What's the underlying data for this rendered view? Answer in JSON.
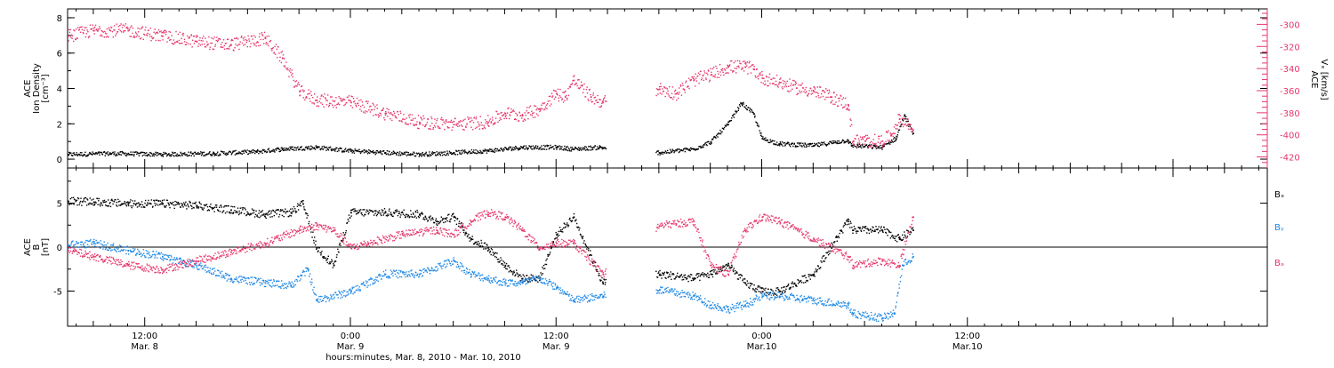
{
  "chart_data": {
    "type": "scatter",
    "x_unit": "hours since 2010-03-08 00:00 UT",
    "xlim": [
      7.5,
      77.5
    ],
    "time_axis": {
      "major_ticks": [
        {
          "x": 12,
          "time": "12:00",
          "date": "Mar. 8"
        },
        {
          "x": 24,
          "time": "0:00",
          "date": "Mar. 9"
        },
        {
          "x": 36,
          "time": "12:00",
          "date": "Mar. 9"
        },
        {
          "x": 48,
          "time": "0:00",
          "date": "Mar.10"
        },
        {
          "x": 60,
          "time": "12:00",
          "date": "Mar.10"
        }
      ],
      "xlabel": "hours:minutes, Mar.  8, 2010 - Mar. 10, 2010"
    },
    "panels": [
      {
        "id": "density",
        "left_ylabel": [
          "ACE",
          "Ion Density",
          "[cm⁻³]"
        ],
        "ylim": [
          -0.5,
          8.5
        ],
        "yticks": [
          0,
          2,
          4,
          6,
          8
        ],
        "right_ylabel": [
          "ACE",
          "Vₓ [km/s]"
        ],
        "right_ylim": [
          -430,
          -286
        ],
        "right_yticks": [
          -300,
          -320,
          -340,
          -360,
          -380,
          -400,
          -420
        ],
        "series": [
          {
            "name": "density",
            "color": "#000000",
            "axis": "left",
            "x": [
              7.5,
              10,
              13,
              16,
              18.5,
              20,
              22,
              24,
              26,
              28,
              30,
              32,
              34,
              36,
              37,
              38.5,
              42,
              44,
              45,
              46,
              46.8,
              47.5,
              48,
              49,
              51,
              53,
              53.2,
              55,
              55.8,
              56.3,
              56.8
            ],
            "y": [
              0.3,
              0.35,
              0.3,
              0.35,
              0.45,
              0.6,
              0.7,
              0.5,
              0.4,
              0.3,
              0.4,
              0.5,
              0.7,
              0.7,
              0.6,
              0.7,
              0.4,
              0.6,
              1.0,
              2.0,
              3.2,
              2.6,
              1.2,
              0.9,
              0.8,
              1.1,
              0.8,
              0.7,
              1.2,
              2.5,
              1.5
            ]
          },
          {
            "name": "Vx",
            "color": "#e5376b",
            "axis": "right",
            "x": [
              7.5,
              9,
              11,
              13,
              15,
              17,
              19,
              20,
              21,
              22,
              24,
              26,
              28,
              30,
              32,
              33,
              34,
              35,
              36,
              36.5,
              37,
              38,
              38.7,
              42,
              43,
              44,
              45,
              46,
              47,
              47.5,
              48,
              49,
              50,
              51,
              52,
              53,
              53.3,
              54,
              55,
              55.5,
              56,
              56.5,
              56.8
            ],
            "y": [
              -310,
              -305,
              -305,
              -310,
              -315,
              -318,
              -312,
              -330,
              -360,
              -368,
              -370,
              -380,
              -388,
              -390,
              -388,
              -380,
              -382,
              -376,
              -362,
              -365,
              -350,
              -365,
              -370,
              -358,
              -362,
              -350,
              -345,
              -338,
              -338,
              -340,
              -348,
              -352,
              -357,
              -360,
              -365,
              -372,
              -405,
              -405,
              -405,
              -400,
              -385,
              -390,
              -395
            ]
          }
        ]
      },
      {
        "id": "field",
        "left_ylabel": [
          "ACE",
          "B",
          "[nT]"
        ],
        "ylim": [
          -9,
          9
        ],
        "yticks": [
          5,
          0,
          -5
        ],
        "zero_line": true,
        "legend": [
          "Bₓ",
          "Bᵧ",
          "Bₔ"
        ],
        "series": [
          {
            "name": "Bx",
            "color": "#000000",
            "x": [
              7.5,
              9,
              11,
              13,
              15,
              17,
              19,
              20.5,
              21.2,
              22,
              23,
              24,
              26,
              28,
              29,
              30,
              31,
              32,
              33,
              34,
              35,
              36,
              37,
              38.7,
              42,
              44,
              45,
              46,
              47,
              48,
              49,
              51,
              53,
              53.3,
              55,
              56,
              56.8
            ],
            "y": [
              5.3,
              5.2,
              5.0,
              5.0,
              4.8,
              4.3,
              3.8,
              4.0,
              5.0,
              0.0,
              -2.0,
              4.0,
              4.0,
              3.8,
              3.0,
              3.5,
              1.0,
              0.0,
              -2.0,
              -3.5,
              -3.5,
              1.5,
              3.5,
              -4.0,
              -3.0,
              -3.5,
              -3.0,
              -2.0,
              -4.0,
              -5.0,
              -5.0,
              -3.0,
              3.0,
              2.0,
              2.0,
              1.0,
              2.0
            ]
          },
          {
            "name": "By",
            "color": "#1e88e5",
            "x": [
              7.5,
              9,
              11,
              13,
              15,
              17,
              19,
              20.5,
              21.5,
              22,
              24,
              26,
              28,
              30,
              31,
              32,
              33,
              34,
              35,
              36,
              37,
              38.7,
              42,
              44,
              45,
              46,
              47,
              48,
              49,
              51,
              53,
              53.3,
              55,
              55.7,
              56.2,
              56.8
            ],
            "y": [
              0.3,
              0.5,
              -0.3,
              -1.0,
              -2.0,
              -3.5,
              -4.0,
              -4.3,
              -2.5,
              -6.0,
              -5.0,
              -3.0,
              -3.0,
              -1.5,
              -3.0,
              -3.5,
              -4.0,
              -4.0,
              -3.5,
              -4.5,
              -6.0,
              -5.5,
              -4.8,
              -5.5,
              -6.5,
              -7.0,
              -6.5,
              -5.5,
              -5.5,
              -6.0,
              -6.5,
              -7.5,
              -8.0,
              -7.5,
              -2.0,
              -1.0
            ]
          },
          {
            "name": "Bz",
            "color": "#e5376b",
            "x": [
              7.5,
              9,
              11,
              13,
              15,
              17,
              19,
              21,
              22,
              23,
              24,
              25,
              27,
              29,
              30,
              31,
              32,
              33,
              34,
              35,
              36,
              37,
              38.7,
              42,
              44,
              45,
              46,
              47,
              48,
              49,
              51,
              53,
              53.3,
              55,
              56,
              56.8
            ],
            "y": [
              -0.3,
              -1.0,
              -2.0,
              -2.5,
              -1.5,
              -0.5,
              0.5,
              2.0,
              2.5,
              2.0,
              0.0,
              0.5,
              1.5,
              2.0,
              1.5,
              3.0,
              4.0,
              3.5,
              2.0,
              0.0,
              0.5,
              0.5,
              -3.0,
              2.5,
              3.0,
              -2.0,
              -3.0,
              2.0,
              3.5,
              3.0,
              1.0,
              -1.0,
              -2.0,
              -1.5,
              -2.0,
              3.5
            ]
          }
        ]
      }
    ]
  },
  "colors": {
    "black": "#000000",
    "pink": "#e5376b",
    "blue": "#1e88e5"
  }
}
